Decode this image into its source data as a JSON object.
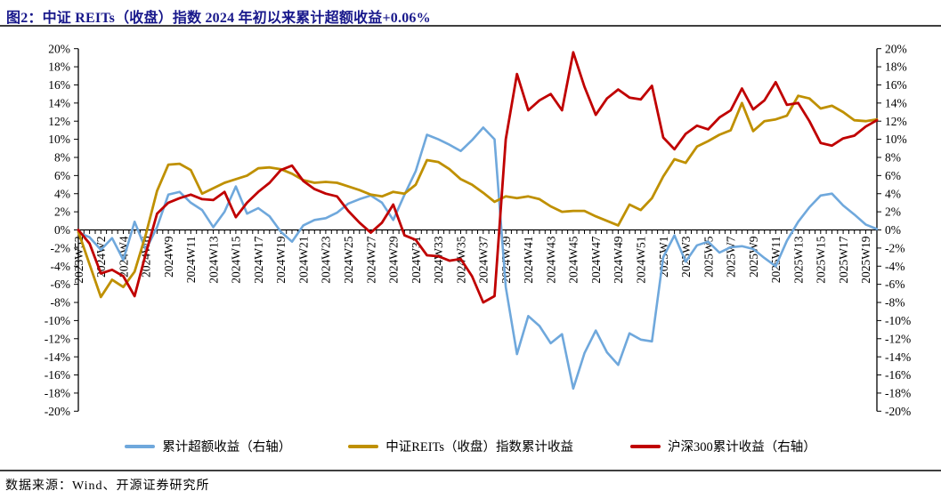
{
  "figure": {
    "title": "图2：中证 REITs（收盘）指数 2024 年初以来累计超额收益+0.06%",
    "title_color": "#18188B",
    "source": "数据来源：Wind、开源证券研究所"
  },
  "chart_data": {
    "type": "line",
    "title": "中证REITs（收盘）指数2024年初以来累计超额收益",
    "grid": false,
    "legend_position": "bottom",
    "y_axis": {
      "min": -20,
      "max": 20,
      "step": 2,
      "suffix": "%",
      "sides": "both"
    },
    "x_axis": {
      "label_rotation": -90,
      "baseline_at": 0
    },
    "label_every": 2,
    "x_labels": [
      "2023W52",
      "2024W2",
      "2024W4",
      "2024W6",
      "2024W9",
      "2024W11",
      "2024W13",
      "2024W15",
      "2024W17",
      "2024W19",
      "2024W21",
      "2024W23",
      "2024W25",
      "2024W27",
      "2024W29",
      "2024W31",
      "2024W33",
      "2024W35",
      "2024W37",
      "2024W39",
      "2024W41",
      "2024W43",
      "2024W45",
      "2024W47",
      "2024W49",
      "2024W51",
      "2025W1",
      "2025W3",
      "2025W5",
      "2025W7",
      "2025W9",
      "2025W11",
      "2025W13",
      "2025W15",
      "2025W17",
      "2025W19"
    ],
    "series": [
      {
        "name": "累计超额收益（右轴）",
        "axis": "right",
        "color": "#6FA8DC",
        "width": 2.6,
        "values": [
          -0.3,
          -0.8,
          -2.2,
          -0.9,
          -3.3,
          0.9,
          -2.2,
          0.3,
          3.9,
          4.2,
          3.0,
          2.2,
          0.3,
          2.0,
          4.8,
          1.8,
          2.4,
          1.5,
          -0.2,
          -1.3,
          0.5,
          1.1,
          1.3,
          1.9,
          2.9,
          3.4,
          3.8,
          3.0,
          1.1,
          3.9,
          6.5,
          10.5,
          10.0,
          9.4,
          8.7,
          9.9,
          11.3,
          10.0,
          -6.3,
          -13.7,
          -9.5,
          -10.6,
          -12.5,
          -11.5,
          -17.5,
          -13.6,
          -11.1,
          -13.5,
          -14.9,
          -11.4,
          -12.1,
          -12.3,
          -3.0,
          -0.6,
          -3.5,
          -1.7,
          -1.3,
          -2.5,
          -1.9,
          -1.8,
          -2.1,
          -3.1,
          -4.0,
          -1.2,
          0.9,
          2.5,
          3.8,
          4.0,
          2.7,
          1.7,
          0.6,
          0.1
        ]
      },
      {
        "name": "中证REITs（收盘）指数累计收益",
        "axis": "left",
        "color": "#BF9000",
        "width": 2.8,
        "values": [
          -0.2,
          -3.8,
          -7.4,
          -5.5,
          -6.3,
          -4.6,
          -0.5,
          4.3,
          7.2,
          7.3,
          6.6,
          4.0,
          4.6,
          5.2,
          5.6,
          6.0,
          6.8,
          6.9,
          6.7,
          6.2,
          5.5,
          5.2,
          5.3,
          5.2,
          4.8,
          4.4,
          3.9,
          3.7,
          4.2,
          4.0,
          5.0,
          7.7,
          7.5,
          6.7,
          5.6,
          5.0,
          4.1,
          3.1,
          3.7,
          3.5,
          3.7,
          3.4,
          2.6,
          2.0,
          2.1,
          2.1,
          1.5,
          1.0,
          0.5,
          2.8,
          2.2,
          3.5,
          5.9,
          7.8,
          7.4,
          9.2,
          9.8,
          10.5,
          11.0,
          14.0,
          10.9,
          12.0,
          12.2,
          12.6,
          14.8,
          14.5,
          13.4,
          13.7,
          13.0,
          12.1,
          12.0,
          12.2
        ]
      },
      {
        "name": "沪深300累计收益（右轴）",
        "axis": "right",
        "color": "#C00000",
        "width": 2.8,
        "values": [
          0.0,
          -1.5,
          -4.8,
          -4.4,
          -5.1,
          -7.3,
          -2.6,
          1.8,
          3.0,
          3.5,
          3.9,
          3.4,
          3.3,
          4.2,
          1.4,
          3.0,
          4.2,
          5.2,
          6.6,
          7.1,
          5.4,
          4.5,
          4.0,
          3.7,
          2.1,
          0.8,
          -0.3,
          0.8,
          2.8,
          -0.6,
          -1.1,
          -2.8,
          -2.9,
          -3.4,
          -3.2,
          -5.1,
          -8.0,
          -7.3,
          10.0,
          17.2,
          13.2,
          14.3,
          15.0,
          13.2,
          19.6,
          15.8,
          12.7,
          14.5,
          15.5,
          14.6,
          14.4,
          15.9,
          10.2,
          8.9,
          10.6,
          11.5,
          11.1,
          12.4,
          13.2,
          15.6,
          13.3,
          14.3,
          16.3,
          13.8,
          14.0,
          12.0,
          9.6,
          9.3,
          10.1,
          10.4,
          11.4,
          12.1
        ]
      }
    ]
  }
}
